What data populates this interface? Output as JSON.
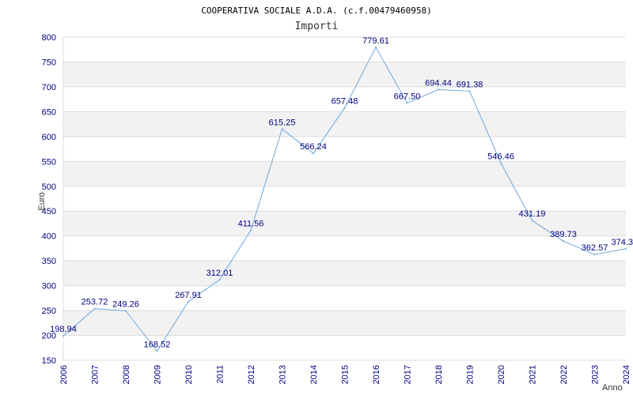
{
  "chart_data": {
    "type": "line",
    "title": "COOPERATIVA SOCIALE A.D.A. (c.f.00479460958)",
    "subtitle": "Importi",
    "xlabel": "Anno",
    "ylabel": "Euro",
    "ylim": [
      150,
      800
    ],
    "yticks": [
      150,
      200,
      250,
      300,
      350,
      400,
      450,
      500,
      550,
      600,
      650,
      700,
      750,
      800
    ],
    "categories": [
      "2006",
      "2007",
      "2008",
      "2009",
      "2010",
      "2011",
      "2012",
      "2013",
      "2014",
      "2015",
      "2016",
      "2017",
      "2018",
      "2019",
      "2020",
      "2021",
      "2022",
      "2023",
      "2024"
    ],
    "values": [
      198.94,
      253.72,
      249.26,
      168.52,
      267.91,
      312.01,
      411.56,
      615.25,
      566.24,
      657.48,
      779.61,
      667.5,
      694.44,
      691.38,
      546.46,
      431.19,
      389.73,
      362.57,
      374.3
    ],
    "labels": [
      "198.94",
      "253.72",
      "249.26",
      "168.52",
      "267.91",
      "312.01",
      "411.56",
      "615.25",
      "566.24",
      "657.48",
      "779.61",
      "667.50",
      "694.44",
      "691.38",
      "546.46",
      "431.19",
      "389.73",
      "362.57",
      "374.3"
    ],
    "grid": true,
    "alternating_bands": true,
    "line_color": "#6fa8dc",
    "band_color": "#f2f2f2",
    "tick_color": "#000080"
  }
}
